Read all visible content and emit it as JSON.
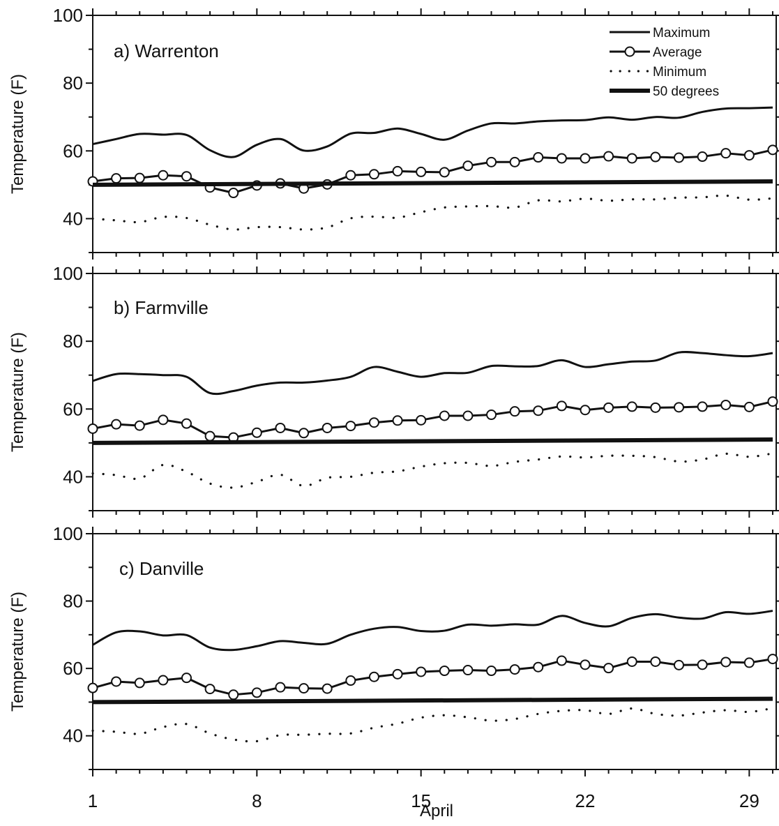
{
  "chart_data": {
    "type": "line",
    "x": [
      1,
      2,
      3,
      4,
      5,
      6,
      7,
      8,
      9,
      10,
      11,
      12,
      13,
      14,
      15,
      16,
      17,
      18,
      19,
      20,
      21,
      22,
      23,
      24,
      25,
      26,
      27,
      28,
      29,
      30
    ],
    "xticks": [
      1,
      8,
      15,
      22,
      29
    ],
    "xtick_labels": [
      "1",
      "8",
      "15",
      "22",
      "29"
    ],
    "xlabel": "April",
    "xlim": [
      1,
      30.15
    ],
    "ylim": [
      30,
      100
    ],
    "yticks": [
      40,
      60,
      80,
      100
    ],
    "ytick_labels": [
      "40",
      "60",
      "80",
      "100"
    ],
    "ylabel": "Temperature (F)",
    "legend": {
      "placement": "top-right",
      "entries": [
        "Maximum",
        "Average",
        "Minimum",
        "50 degrees"
      ]
    },
    "panels": [
      {
        "title": "a) Warrenton",
        "series": [
          {
            "name": "Maximum",
            "style": "solid",
            "values": [
              62,
              63.5,
              65,
              64.8,
              64.7,
              60.2,
              58.2,
              61.8,
              63.5,
              60.1,
              61.3,
              65.1,
              65.3,
              66.6,
              65,
              63.3,
              66,
              68.1,
              68.1,
              68.7,
              69,
              69.1,
              69.9,
              69.2,
              70,
              69.8,
              71.5,
              72.5,
              72.6,
              72.8
            ]
          },
          {
            "name": "Average",
            "style": "line-circles",
            "values": [
              51,
              51.9,
              52,
              52.8,
              52.5,
              49.2,
              47.6,
              49.8,
              50.4,
              48.9,
              50.1,
              52.8,
              53.1,
              54,
              53.8,
              53.7,
              55.6,
              56.7,
              56.7,
              58.1,
              57.8,
              57.8,
              58.4,
              57.8,
              58.2,
              58,
              58.3,
              59.3,
              58.7,
              60.3
            ]
          },
          {
            "name": "Minimum",
            "style": "dotted",
            "values": [
              40,
              39.5,
              39,
              40.5,
              40.2,
              38.2,
              36.8,
              37.5,
              37.5,
              36.8,
              37.4,
              40.1,
              40.6,
              40.3,
              41.9,
              43.3,
              43.6,
              43.7,
              43.3,
              45.4,
              45.1,
              45.9,
              45.3,
              45.7,
              45.7,
              46.2,
              46.3,
              46.8,
              45.6,
              46
            ]
          },
          {
            "name": "50 degrees",
            "style": "thick",
            "values": [
              50,
              50.03,
              50.07,
              50.1,
              50.14,
              50.17,
              50.21,
              50.24,
              50.28,
              50.31,
              50.34,
              50.38,
              50.41,
              50.45,
              50.48,
              50.52,
              50.55,
              50.59,
              50.62,
              50.66,
              50.69,
              50.72,
              50.76,
              50.79,
              50.83,
              50.86,
              50.9,
              50.93,
              50.97,
              51
            ]
          }
        ]
      },
      {
        "title": "b) Farmville",
        "series": [
          {
            "name": "Maximum",
            "style": "solid",
            "values": [
              68.3,
              70.3,
              70.3,
              70,
              69.5,
              64.7,
              65.3,
              66.9,
              67.8,
              67.8,
              68.4,
              69.5,
              72.4,
              71,
              69.5,
              70.6,
              70.7,
              72.7,
              72.6,
              72.7,
              74.4,
              72.4,
              73.2,
              74,
              74.3,
              76.7,
              76.5,
              75.9,
              75.6,
              76.5
            ]
          },
          {
            "name": "Average",
            "style": "line-circles",
            "values": [
              54.2,
              55.5,
              55.1,
              56.8,
              55.7,
              52,
              51.6,
              53,
              54.4,
              52.9,
              54.4,
              55,
              56,
              56.6,
              56.7,
              58,
              58,
              58.3,
              59.3,
              59.5,
              60.9,
              59.7,
              60.4,
              60.7,
              60.4,
              60.5,
              60.7,
              61.2,
              60.6,
              62.2
            ]
          },
          {
            "name": "Minimum",
            "style": "dotted",
            "values": [
              41,
              40.5,
              39.5,
              43.5,
              41.5,
              38,
              36.8,
              38.5,
              40.6,
              37.3,
              39.7,
              40,
              41.2,
              41.6,
              43,
              44,
              44.1,
              43.2,
              44.4,
              45.1,
              46,
              45.7,
              46.2,
              46.2,
              45.8,
              44.5,
              45.1,
              46.8,
              45.9,
              46.9
            ]
          },
          {
            "name": "50 degrees",
            "style": "thick",
            "values": [
              50,
              50.03,
              50.07,
              50.1,
              50.14,
              50.17,
              50.21,
              50.24,
              50.28,
              50.31,
              50.34,
              50.38,
              50.41,
              50.45,
              50.48,
              50.52,
              50.55,
              50.59,
              50.62,
              50.66,
              50.69,
              50.72,
              50.76,
              50.79,
              50.83,
              50.86,
              50.9,
              50.93,
              50.97,
              51
            ]
          }
        ]
      },
      {
        "title": "c) Danville",
        "series": [
          {
            "name": "Maximum",
            "style": "solid",
            "values": [
              67,
              70.7,
              71,
              69.8,
              69.9,
              66.2,
              65.5,
              66.6,
              68.1,
              67.6,
              67.3,
              70,
              71.8,
              72.3,
              71.1,
              71.2,
              73,
              72.7,
              73.1,
              73,
              75.6,
              73.5,
              72.5,
              75,
              76.1,
              75.1,
              74.8,
              76.7,
              76.2,
              77.1
            ]
          },
          {
            "name": "Average",
            "style": "line-circles",
            "values": [
              54.2,
              56.1,
              55.7,
              56.5,
              57.2,
              53.9,
              52.2,
              52.8,
              54.4,
              54.1,
              54,
              56.4,
              57.5,
              58.3,
              59,
              59.3,
              59.5,
              59.3,
              59.7,
              60.4,
              62.3,
              61.1,
              60.1,
              62,
              62,
              61,
              61.1,
              61.9,
              61.7,
              62.8
            ]
          },
          {
            "name": "Minimum",
            "style": "dotted",
            "values": [
              41.5,
              41.2,
              40.6,
              42.6,
              43.5,
              40.7,
              38.9,
              38.4,
              40.2,
              40.3,
              40.6,
              40.7,
              42.4,
              43.6,
              45.4,
              46.1,
              45.5,
              44.5,
              45,
              46.5,
              47.4,
              47.6,
              46.5,
              48.1,
              46.5,
              46,
              46.9,
              47.6,
              47.1,
              48.2
            ]
          },
          {
            "name": "50 degrees",
            "style": "thick",
            "values": [
              50,
              50.03,
              50.07,
              50.1,
              50.14,
              50.17,
              50.21,
              50.24,
              50.28,
              50.31,
              50.34,
              50.38,
              50.41,
              50.45,
              50.48,
              50.52,
              50.55,
              50.59,
              50.62,
              50.66,
              50.69,
              50.72,
              50.76,
              50.79,
              50.83,
              50.86,
              50.9,
              50.93,
              50.97,
              51
            ]
          }
        ]
      }
    ]
  }
}
